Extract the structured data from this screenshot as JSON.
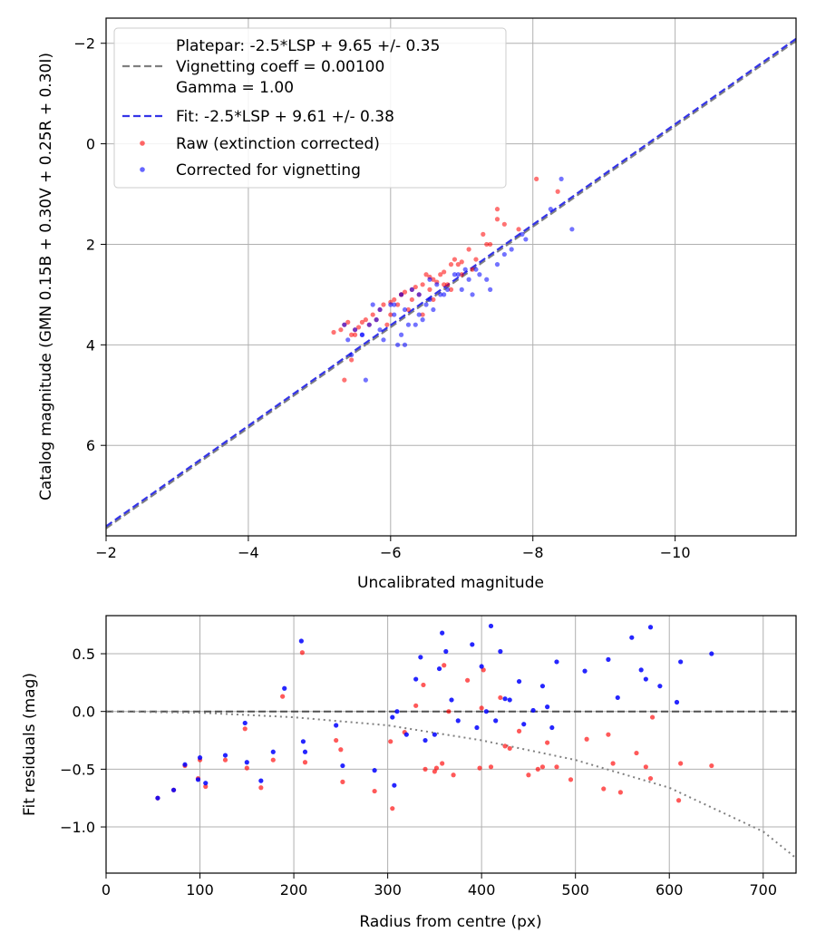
{
  "chart_data": [
    {
      "type": "scatter",
      "title": "",
      "xlabel": "Uncalibrated magnitude",
      "ylabel": "Catalog magnitude (GMN 0.15B + 0.30V + 0.25R + 0.30I)",
      "xlim": [
        -2,
        -11.7
      ],
      "ylim": [
        7.8,
        -2.5
      ],
      "xticks": [
        -2,
        -4,
        -6,
        -8,
        -10
      ],
      "xtick_labels": [
        "−2",
        "−4",
        "−6",
        "−8",
        "−10"
      ],
      "yticks": [
        -2,
        0,
        2,
        4,
        6
      ],
      "ytick_labels": [
        "−2",
        "0",
        "2",
        "4",
        "6"
      ],
      "grid": true,
      "legend_position": "top-left",
      "legend": {
        "platepar_line1": "Platepar: -2.5*LSP + 9.65 +/- 0.35",
        "platepar_line2": "Vignetting coeff = 0.00100",
        "platepar_line3": "Gamma = 1.00",
        "fit": "Fit: -2.5*LSP + 9.61 +/- 0.38",
        "raw": "Raw (extinction corrected)",
        "corrected": "Corrected for vignetting"
      },
      "colors": {
        "platepar": "#808080",
        "fit": "#3535e8",
        "raw": "#ff0000",
        "corrected": "#0000ff"
      },
      "lines": [
        {
          "name": "Platepar",
          "intercept": 9.65,
          "slope_per_lsp": -2.5,
          "style": "dashed"
        },
        {
          "name": "Fit",
          "intercept": 9.61,
          "slope_per_lsp": -2.5,
          "style": "dashed"
        }
      ],
      "series": [
        {
          "name": "Raw (extinction corrected)",
          "x": [
            -5.3,
            -5.35,
            -5.4,
            -5.45,
            -5.5,
            -5.55,
            -5.6,
            -5.65,
            -5.7,
            -5.75,
            -5.8,
            -5.85,
            -5.9,
            -5.95,
            -6.0,
            -6.05,
            -6.1,
            -6.15,
            -6.2,
            -6.25,
            -6.3,
            -6.35,
            -6.4,
            -6.45,
            -6.5,
            -6.55,
            -6.6,
            -6.65,
            -6.7,
            -6.75,
            -6.8,
            -6.85,
            -6.9,
            -6.95,
            -7.0,
            -7.1,
            -7.2,
            -7.3,
            -7.4,
            -7.5,
            -7.6,
            -7.8,
            -8.05,
            -8.35,
            -5.2,
            -5.35,
            -5.45,
            -6.0,
            -6.15,
            -6.3,
            -6.45,
            -6.6,
            -6.75,
            -6.85,
            -7.0,
            -7.15,
            -7.35,
            -7.5,
            -5.5,
            -6.55
          ],
          "y": [
            3.7,
            3.6,
            3.55,
            3.8,
            3.7,
            3.65,
            3.55,
            3.5,
            3.6,
            3.4,
            3.5,
            3.3,
            3.2,
            3.6,
            3.4,
            3.1,
            3.2,
            3.0,
            2.95,
            3.3,
            3.1,
            2.85,
            3.0,
            2.8,
            2.6,
            2.9,
            2.7,
            2.75,
            2.6,
            2.55,
            2.8,
            2.4,
            2.3,
            2.4,
            2.35,
            2.1,
            2.3,
            1.8,
            2.0,
            1.5,
            1.6,
            1.7,
            0.7,
            0.95,
            3.75,
            4.7,
            4.3,
            3.15,
            3.0,
            2.9,
            3.4,
            3.1,
            2.8,
            2.9,
            2.6,
            2.5,
            2.0,
            1.3,
            3.8,
            2.65
          ]
        },
        {
          "name": "Corrected for vignetting",
          "x": [
            -5.35,
            -5.4,
            -5.5,
            -5.6,
            -5.65,
            -5.7,
            -5.8,
            -5.85,
            -5.9,
            -6.0,
            -6.05,
            -6.1,
            -6.15,
            -6.2,
            -6.25,
            -6.3,
            -6.35,
            -6.4,
            -6.45,
            -6.5,
            -6.55,
            -6.6,
            -6.7,
            -6.8,
            -6.9,
            -7.0,
            -7.05,
            -7.15,
            -7.25,
            -7.35,
            -7.5,
            -7.7,
            -7.85,
            -8.25,
            -8.55,
            -5.45,
            -5.6,
            -5.85,
            -6.05,
            -6.2,
            -6.4,
            -6.55,
            -6.65,
            -6.75,
            -6.95,
            -7.1,
            -7.2,
            -7.4,
            -7.6,
            -7.9,
            -8.4,
            -5.75,
            -6.15
          ],
          "y": [
            3.6,
            3.9,
            3.7,
            3.8,
            4.7,
            3.6,
            3.5,
            3.3,
            3.9,
            3.2,
            3.4,
            4.0,
            3.8,
            3.3,
            3.6,
            2.9,
            3.6,
            3.0,
            3.5,
            3.2,
            2.7,
            3.3,
            3.0,
            2.9,
            2.6,
            2.9,
            2.5,
            3.0,
            2.6,
            2.7,
            2.4,
            2.1,
            1.8,
            1.3,
            1.7,
            4.2,
            3.8,
            3.7,
            3.2,
            4.0,
            3.4,
            3.1,
            2.8,
            3.0,
            2.6,
            2.7,
            2.5,
            2.9,
            2.2,
            1.9,
            0.7,
            3.2,
            3.0
          ]
        }
      ]
    },
    {
      "type": "scatter",
      "title": "",
      "xlabel": "Radius from centre (px)",
      "ylabel": "Fit residuals (mag)",
      "xlim": [
        0,
        735
      ],
      "ylim": [
        -1.4,
        0.83
      ],
      "xticks": [
        0,
        100,
        200,
        300,
        400,
        500,
        600,
        700
      ],
      "xtick_labels": [
        "0",
        "100",
        "200",
        "300",
        "400",
        "500",
        "600",
        "700"
      ],
      "yticks": [
        -1.0,
        -0.5,
        0.0,
        0.5
      ],
      "ytick_labels": [
        "−1.0",
        "−0.5",
        "0.0",
        "0.5"
      ],
      "grid": true,
      "colors": {
        "raw": "#ff0000",
        "corrected": "#0000ff",
        "zero_line": "#505050",
        "vignetting_curve": "#808080"
      },
      "reference_lines": [
        {
          "name": "zero",
          "y": 0.0,
          "style": "dashed"
        },
        {
          "name": "vignetting model",
          "style": "dotted",
          "x": [
            0,
            100,
            200,
            300,
            400,
            500,
            600,
            700,
            735
          ],
          "y": [
            0.0,
            -0.01,
            -0.05,
            -0.12,
            -0.25,
            -0.42,
            -0.66,
            -1.04,
            -1.27
          ]
        }
      ],
      "series": [
        {
          "name": "Raw (extinction corrected)",
          "x": [
            55,
            72,
            84,
            98,
            100,
            106,
            127,
            148,
            150,
            165,
            178,
            188,
            209,
            212,
            245,
            250,
            252,
            286,
            303,
            305,
            318,
            330,
            338,
            340,
            350,
            352,
            358,
            360,
            365,
            370,
            385,
            398,
            400,
            402,
            410,
            420,
            425,
            430,
            440,
            450,
            460,
            465,
            470,
            480,
            495,
            512,
            530,
            535,
            540,
            548,
            565,
            575,
            580,
            582,
            610,
            612,
            645
          ],
          "y": [
            -0.75,
            -0.68,
            -0.47,
            -0.58,
            -0.42,
            -0.65,
            -0.42,
            -0.15,
            -0.49,
            -0.66,
            -0.42,
            0.13,
            0.51,
            -0.44,
            -0.25,
            -0.33,
            -0.61,
            -0.69,
            -0.26,
            -0.84,
            -0.18,
            0.05,
            0.23,
            -0.5,
            -0.52,
            -0.49,
            -0.45,
            0.4,
            0.0,
            -0.55,
            0.27,
            -0.49,
            0.03,
            0.36,
            -0.48,
            0.12,
            -0.3,
            -0.32,
            -0.17,
            -0.55,
            -0.5,
            -0.48,
            -0.27,
            -0.48,
            -0.59,
            -0.24,
            -0.67,
            -0.2,
            -0.45,
            -0.7,
            -0.36,
            -0.48,
            -0.58,
            -0.05,
            -0.77,
            -0.45,
            -0.47
          ]
        },
        {
          "name": "Corrected for vignetting",
          "x": [
            55,
            72,
            84,
            98,
            100,
            106,
            127,
            148,
            150,
            165,
            178,
            190,
            208,
            210,
            212,
            245,
            252,
            286,
            305,
            307,
            310,
            320,
            330,
            335,
            340,
            350,
            355,
            358,
            362,
            368,
            375,
            390,
            395,
            400,
            405,
            410,
            415,
            420,
            425,
            430,
            440,
            445,
            455,
            465,
            470,
            475,
            480,
            510,
            535,
            545,
            560,
            570,
            575,
            580,
            590,
            608,
            612,
            645
          ],
          "y": [
            -0.75,
            -0.68,
            -0.46,
            -0.59,
            -0.4,
            -0.62,
            -0.38,
            -0.1,
            -0.44,
            -0.6,
            -0.35,
            0.2,
            0.61,
            -0.26,
            -0.35,
            -0.12,
            -0.47,
            -0.51,
            -0.05,
            -0.64,
            0.0,
            -0.2,
            0.28,
            0.47,
            -0.25,
            -0.2,
            0.37,
            0.68,
            0.52,
            0.1,
            -0.08,
            0.58,
            -0.14,
            0.39,
            0.0,
            0.74,
            -0.08,
            0.52,
            0.11,
            0.1,
            0.26,
            -0.11,
            0.01,
            0.22,
            0.04,
            -0.14,
            0.43,
            0.35,
            0.45,
            0.12,
            0.64,
            0.36,
            0.28,
            0.73,
            0.22,
            0.08,
            0.43,
            0.5
          ]
        }
      ]
    }
  ]
}
